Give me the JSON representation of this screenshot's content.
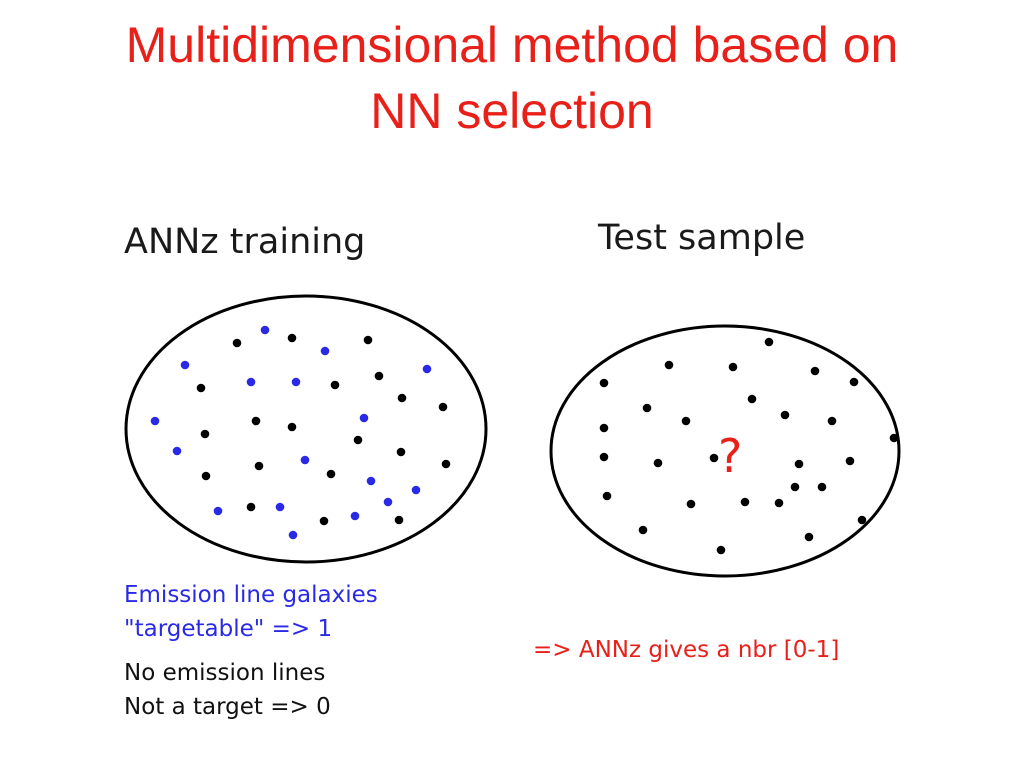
{
  "title": {
    "line1": "Multidimensional method based on",
    "line2": "NN selection"
  },
  "panels": {
    "training": {
      "heading": "ANNz training"
    },
    "test": {
      "heading": "Test sample",
      "question_mark": "?"
    }
  },
  "notes": {
    "emission": {
      "line1": "Emission line galaxies",
      "line2": "\"targetable\" => 1"
    },
    "no_emission": {
      "line1": "No emission lines",
      "line2": "Not a target => 0"
    },
    "result": "=> ANNz gives a nbr [0-1]"
  },
  "colors": {
    "title": "#e8201a",
    "target_dot": "#2a2ae6",
    "non_target_dot": "#000000",
    "result_text": "#e8201a"
  }
}
